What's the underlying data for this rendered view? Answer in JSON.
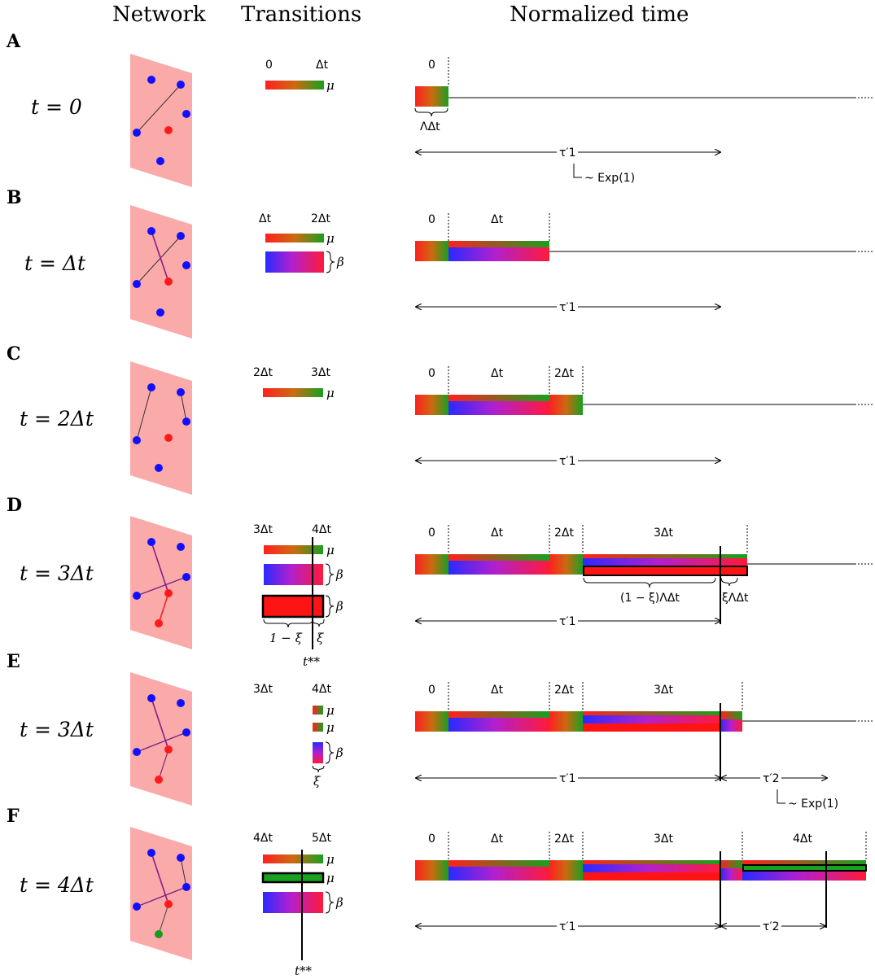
{
  "headers": {
    "network": "Network",
    "transitions": "Transitions",
    "time": "Normalized time"
  },
  "colors": {
    "infected": "#ff1a1a",
    "susceptible": "#1010ff",
    "recovered": "#1a9a1a",
    "network_bg": "#fbaaaa",
    "link_si": "#7a2080"
  },
  "rows": [
    {
      "label": "A",
      "time": "t = 0",
      "trans_ticks": [
        "0",
        "Δt"
      ],
      "trans_bars": [
        {
          "kind": "mu",
          "sym": "μ"
        }
      ],
      "time_ticks": [
        "0"
      ],
      "annotations": {
        "block_brace": "ΛΔt",
        "tau1": "τ′1",
        "exp1": "~ Exp(1)"
      }
    },
    {
      "label": "B",
      "time": "t = Δt",
      "trans_ticks": [
        "Δt",
        "2Δt"
      ],
      "trans_bars": [
        {
          "kind": "mu",
          "sym": "μ"
        },
        {
          "kind": "beta",
          "sym": "β"
        }
      ],
      "time_ticks": [
        "0",
        "Δt"
      ],
      "annotations": {
        "tau1": "τ′1"
      }
    },
    {
      "label": "C",
      "time": "t = 2Δt",
      "trans_ticks": [
        "2Δt",
        "3Δt"
      ],
      "trans_bars": [
        {
          "kind": "mu",
          "sym": "μ"
        }
      ],
      "time_ticks": [
        "0",
        "Δt",
        "2Δt"
      ],
      "annotations": {
        "tau1": "τ′1"
      }
    },
    {
      "label": "D",
      "time": "t = 3Δt",
      "trans_ticks": [
        "3Δt",
        "4Δt"
      ],
      "trans_bars": [
        {
          "kind": "mu",
          "sym": "μ"
        },
        {
          "kind": "beta",
          "sym": "β"
        },
        {
          "kind": "red",
          "sym": "β"
        }
      ],
      "xi_labels": [
        "1 − ξ",
        "ξ"
      ],
      "tstar": "t**",
      "time_ticks": [
        "0",
        "Δt",
        "2Δt",
        "3Δt"
      ],
      "annotations": {
        "brace_a": "(1 − ξ)ΛΔt",
        "brace_b": "ξΛΔt",
        "tau1": "τ′1"
      }
    },
    {
      "label": "E",
      "time": "t = 3Δt",
      "trans_ticks": [
        "3Δt",
        "4Δt"
      ],
      "trans_bars": [
        {
          "kind": "mu",
          "sym": "μ"
        },
        {
          "kind": "mu",
          "sym": "μ"
        },
        {
          "kind": "beta",
          "sym": "β"
        }
      ],
      "xi_label": "ξ",
      "time_ticks": [
        "0",
        "Δt",
        "2Δt",
        "3Δt"
      ],
      "annotations": {
        "tau1": "τ′1",
        "tau2": "τ′2",
        "exp2": "~ Exp(1)"
      }
    },
    {
      "label": "F",
      "time": "t = 4Δt",
      "trans_ticks": [
        "4Δt",
        "5Δt"
      ],
      "trans_bars": [
        {
          "kind": "mu",
          "sym": "μ"
        },
        {
          "kind": "green",
          "sym": "μ"
        },
        {
          "kind": "beta",
          "sym": "β"
        }
      ],
      "tstar": "t**",
      "time_ticks": [
        "0",
        "Δt",
        "2Δt",
        "3Δt",
        "4Δt"
      ],
      "annotations": {
        "tau1": "τ′1",
        "tau2": "τ′2"
      }
    }
  ]
}
